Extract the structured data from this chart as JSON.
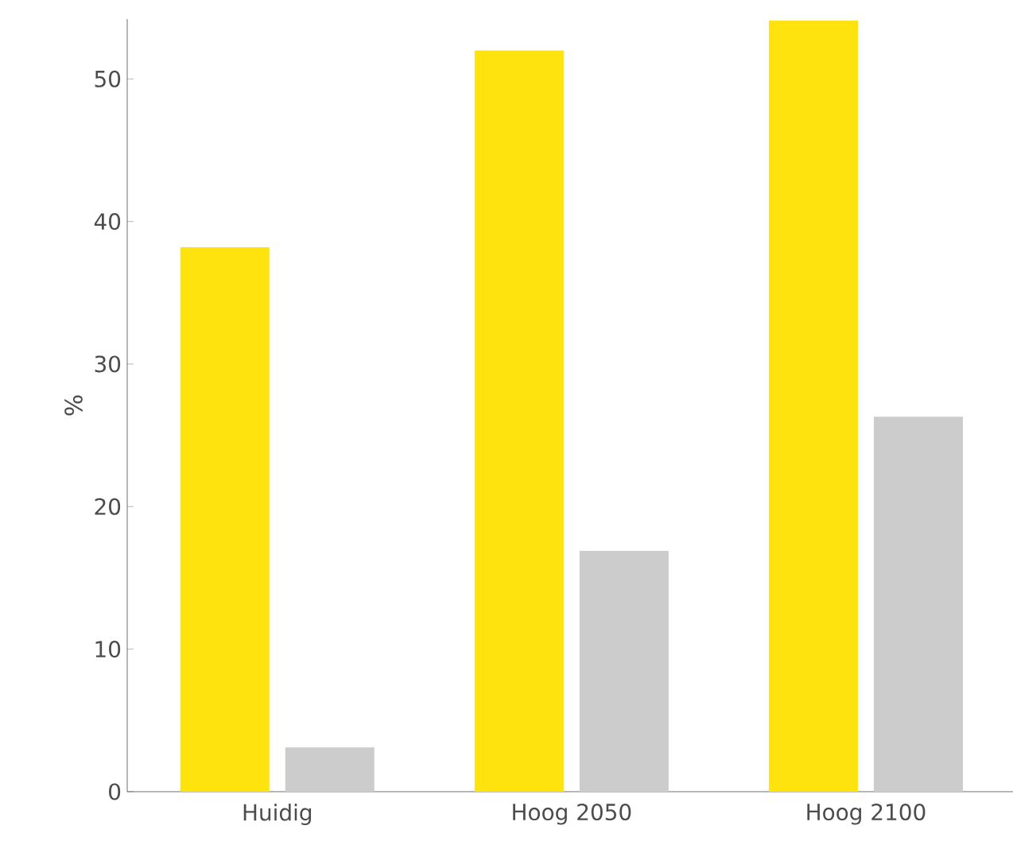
{
  "chart_data": {
    "type": "bar",
    "ylabel": "%",
    "categories": [
      "Huidig",
      "Hoog 2050",
      "Hoog 2100"
    ],
    "series": [
      {
        "color": "#ffe30f",
        "values": [
          38.2,
          52.0,
          54.1
        ]
      },
      {
        "color": "#cccccc",
        "values": [
          3.1,
          16.9,
          26.3
        ]
      }
    ],
    "ylim": [
      0,
      54.2
    ],
    "yticks": [
      0,
      10,
      20,
      30,
      40,
      50
    ],
    "grid": false
  }
}
